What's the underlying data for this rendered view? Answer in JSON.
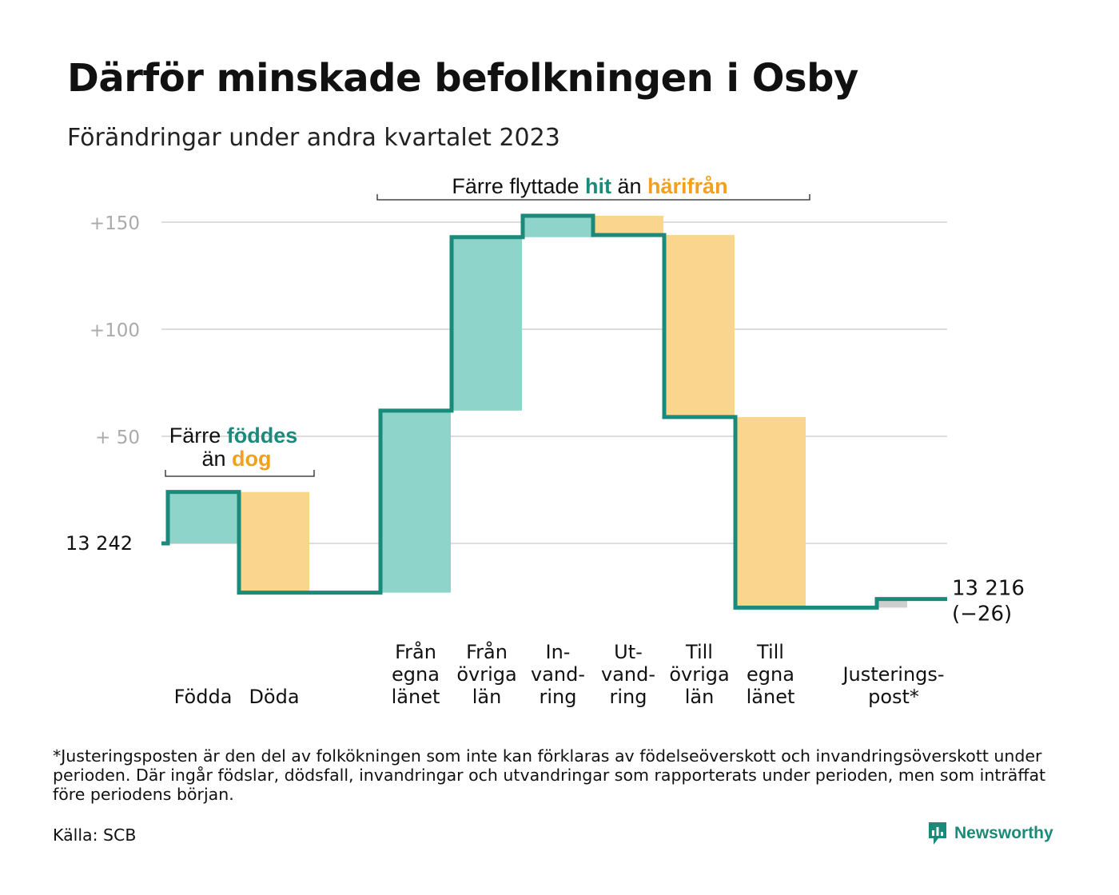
{
  "title": "Därför minskade befolkningen i Osby",
  "subtitle": "Förändringar under andra kvartalet 2023",
  "colors": {
    "teal_line": "#1a8a7a",
    "teal_fill": "#8ed4cb",
    "orange_fill": "#fad58d",
    "orange_text": "#f2a020",
    "gray_fill": "#cfcfcf",
    "grid": "#dddddd"
  },
  "annotations": {
    "births": {
      "prefix": "Färre",
      "hl1": "föddes",
      "mid": "än",
      "hl2": "dog"
    },
    "migration": {
      "prefix": "Färre flyttade",
      "hl1": "hit",
      "mid": "än",
      "hl2": "härifrån"
    }
  },
  "chart_data": {
    "type": "waterfall",
    "start_label": "13  242",
    "start_value": 13242,
    "end_value_label": "13 216",
    "end_change_label": "(−26)",
    "y_ticks": [
      {
        "value": 150,
        "label": "+150"
      },
      {
        "value": 100,
        "label": "+100"
      },
      {
        "value": 50,
        "label": "+  50"
      }
    ],
    "grid": true,
    "steps": [
      {
        "label": [
          "Födda"
        ],
        "change": 24,
        "kind": "in"
      },
      {
        "label": [
          "Döda"
        ],
        "change": -47,
        "kind": "out"
      },
      {
        "label": [
          "Från",
          "egna",
          "länet"
        ],
        "change": 85,
        "kind": "in"
      },
      {
        "label": [
          "Från",
          "övriga",
          "län"
        ],
        "change": 81,
        "kind": "in"
      },
      {
        "label": [
          "In-",
          "vand-",
          "ring"
        ],
        "change": 10,
        "kind": "in"
      },
      {
        "label": [
          "Ut-",
          "vand-",
          "ring"
        ],
        "change": -9,
        "kind": "out"
      },
      {
        "label": [
          "Till",
          "övriga",
          "län"
        ],
        "change": -85,
        "kind": "out"
      },
      {
        "label": [
          "Till",
          "egna",
          "länet"
        ],
        "change": -89,
        "kind": "out"
      },
      {
        "label": [
          "Justerings-",
          "post*"
        ],
        "change": 4,
        "kind": "adjust"
      }
    ]
  },
  "footnote": "*Justeringsposten är den del av folkökningen som inte kan förklaras av födelseöverskott och invandringsöverskott under perioden. Där ingår födslar, dödsfall, invandringar och utvandringar som rapporterats under perioden, men som inträffat före periodens början.",
  "source": "Källa: SCB",
  "brand": "Newsworthy"
}
